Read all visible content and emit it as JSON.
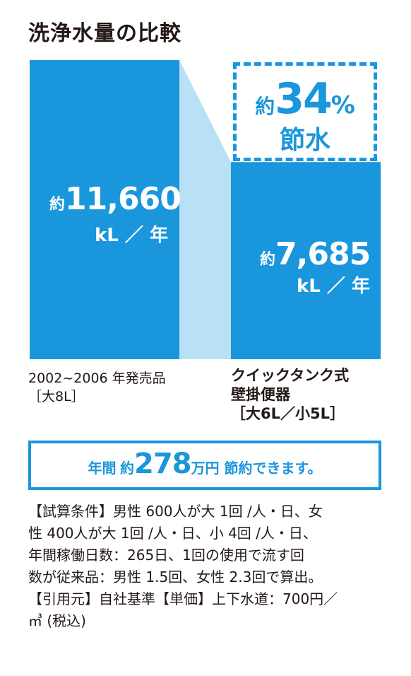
{
  "title": "洗浄水量の比較",
  "colors": {
    "bar": "#1a96dc",
    "connector": "#b8e1f5",
    "text": "#231815"
  },
  "chart_data": {
    "type": "bar",
    "title": "洗浄水量の比較",
    "unit": "kL ／ 年",
    "ylim": [
      0,
      11660
    ],
    "grid": false,
    "categories": [
      "2002~2006 年発売品［大8L］",
      "クイックタンク式 壁掛便器［大6L／小5L］"
    ],
    "values": [
      11660,
      7685
    ],
    "labels": [
      {
        "prefix": "約",
        "value": "11,660",
        "unit": "kL ／ 年"
      },
      {
        "prefix": "約",
        "value": "7,685",
        "unit": "kL ／ 年"
      }
    ],
    "annotation": {
      "prefix": "約",
      "value": "34",
      "suffix": "%",
      "label": "節水"
    }
  },
  "categories_display": {
    "left": {
      "line1": "2002~2006 年発売品",
      "line2": "［大8L］"
    },
    "right": {
      "line1": "クイックタンク式",
      "line2": "壁掛便器",
      "line3": "［大6L／小5L］"
    }
  },
  "banner": {
    "part1": "年間",
    "part2": "約",
    "amount": "278",
    "part4": "万円 節約できます。"
  },
  "notes": [
    "【試算条件】男性 600人が大 1回 /人・日、女",
    "性 400人が大 1回 /人・日、小 4回 /人・日、",
    "年間稼働日数：265日、1回の使用で流す回",
    "数が従来品：男性 1.5回、女性 2.3回で算出。",
    "【引用元】自社基準【単価】上下水道：700円／",
    "㎥ (税込)"
  ]
}
